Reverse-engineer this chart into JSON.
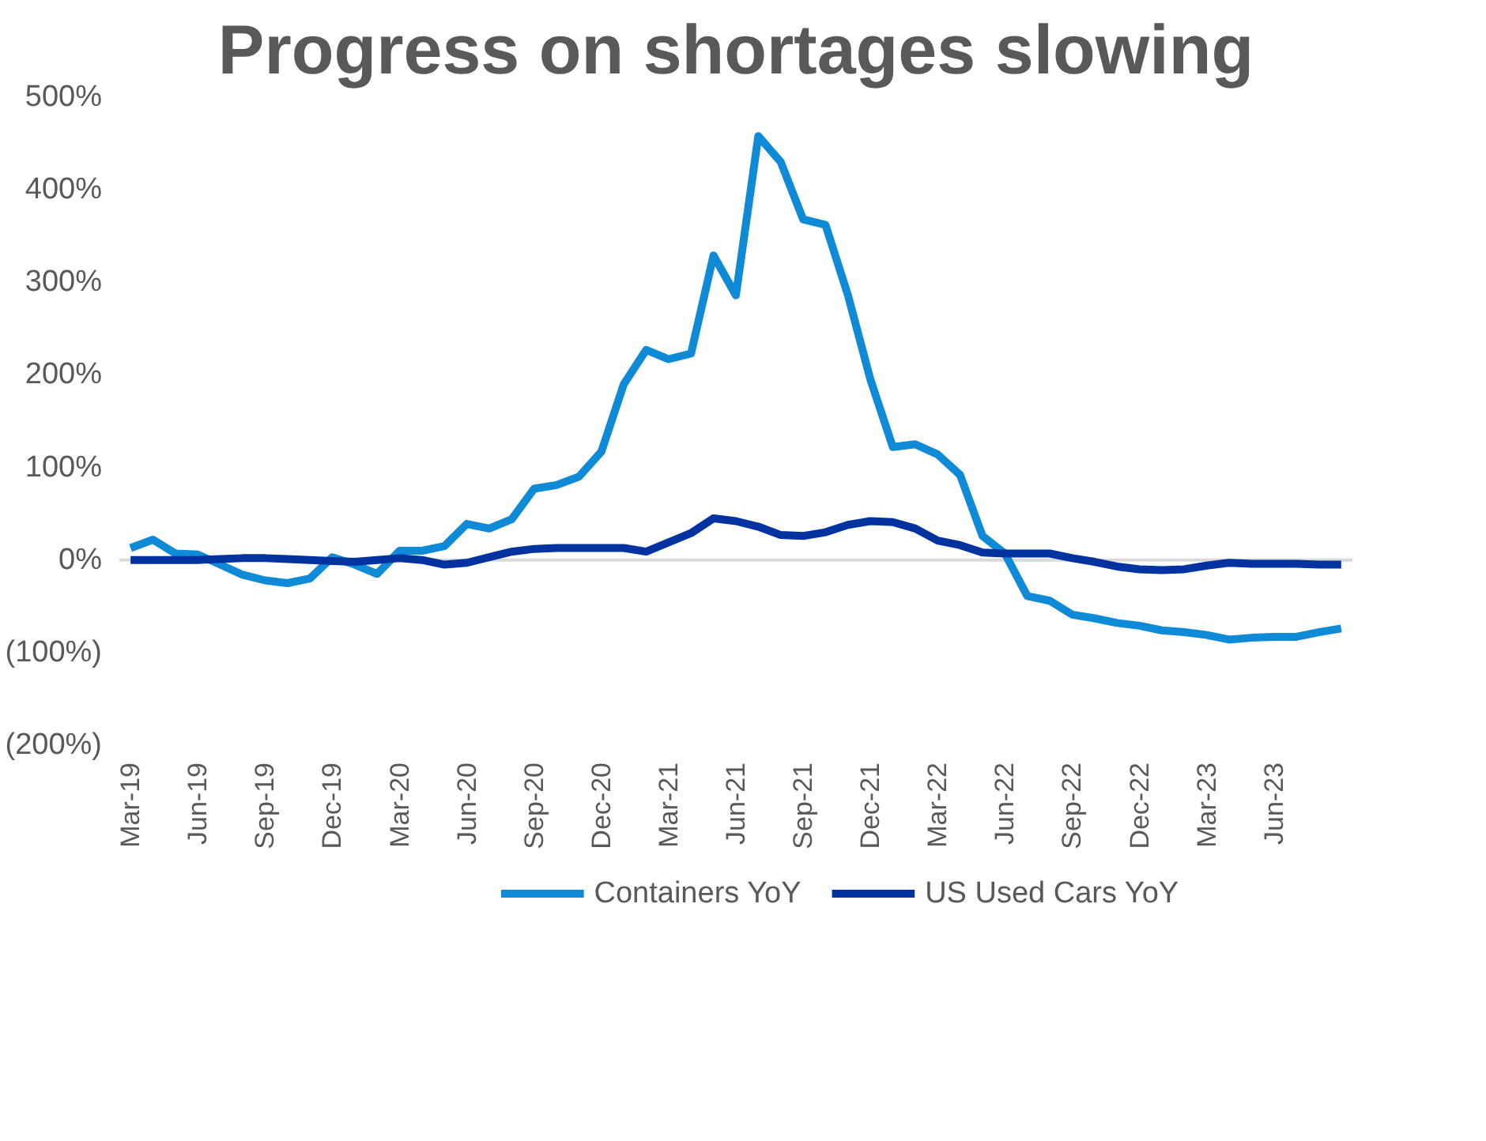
{
  "chart_data": {
    "type": "line",
    "title": "Progress on shortages slowing",
    "categories": [
      "Mar-19",
      null,
      null,
      "Jun-19",
      null,
      null,
      "Sep-19",
      null,
      null,
      "Dec-19",
      null,
      null,
      "Mar-20",
      null,
      null,
      "Jun-20",
      null,
      null,
      "Sep-20",
      null,
      null,
      "Dec-20",
      null,
      null,
      "Mar-21",
      null,
      null,
      "Jun-21",
      null,
      null,
      "Sep-21",
      null,
      null,
      "Dec-21",
      null,
      null,
      "Mar-22",
      null,
      null,
      "Jun-22",
      null,
      null,
      "Sep-22",
      null,
      null,
      "Dec-22",
      null,
      null,
      "Mar-23",
      null,
      null,
      "Jun-23",
      null,
      null,
      null
    ],
    "series": [
      {
        "name": "Containers YoY",
        "color": "#0f8ad6",
        "values": [
          13,
          22,
          7,
          6,
          -5,
          -16,
          -22,
          -25,
          -20,
          3,
          -5,
          -15,
          10,
          10,
          15,
          39,
          34,
          44,
          77,
          81,
          90,
          117,
          190,
          227,
          217,
          223,
          329,
          286,
          458,
          430,
          368,
          362,
          286,
          195,
          122,
          125,
          114,
          92,
          26,
          7,
          -39,
          -44,
          -59,
          -63,
          -68,
          -71,
          -76,
          -78,
          -81,
          -86,
          -84,
          -83,
          -83,
          -78,
          -74
        ]
      },
      {
        "name": "US Used Cars YoY",
        "color": "#0033a0",
        "values": [
          0,
          0,
          0,
          0,
          1,
          2,
          2,
          1,
          0,
          -1,
          -2,
          0,
          2,
          0,
          -5,
          -3,
          3,
          9,
          12,
          13,
          13,
          13,
          13,
          9,
          19,
          29,
          45,
          42,
          36,
          27,
          26,
          30,
          38,
          42,
          41,
          34,
          21,
          16,
          8,
          7,
          7,
          7,
          2,
          -2,
          -7,
          -10,
          -11,
          -10,
          -6,
          -3,
          -4,
          -4,
          -4,
          -5,
          -5
        ]
      }
    ],
    "ylim": [
      -200,
      500
    ],
    "yticks": [
      {
        "value": 500,
        "label": "500%"
      },
      {
        "value": 400,
        "label": "400%"
      },
      {
        "value": 300,
        "label": "300%"
      },
      {
        "value": 200,
        "label": "200%"
      },
      {
        "value": 100,
        "label": "100%"
      },
      {
        "value": 0,
        "label": "0%"
      },
      {
        "value": -100,
        "label": "(100%)"
      },
      {
        "value": -200,
        "label": "(200%)"
      }
    ],
    "ref_lines": [
      {
        "axis": "y",
        "value": 0,
        "color": "#d9d9d9"
      }
    ],
    "legend": "bottom",
    "grid": false,
    "marker": "none",
    "line_style": "solid"
  }
}
